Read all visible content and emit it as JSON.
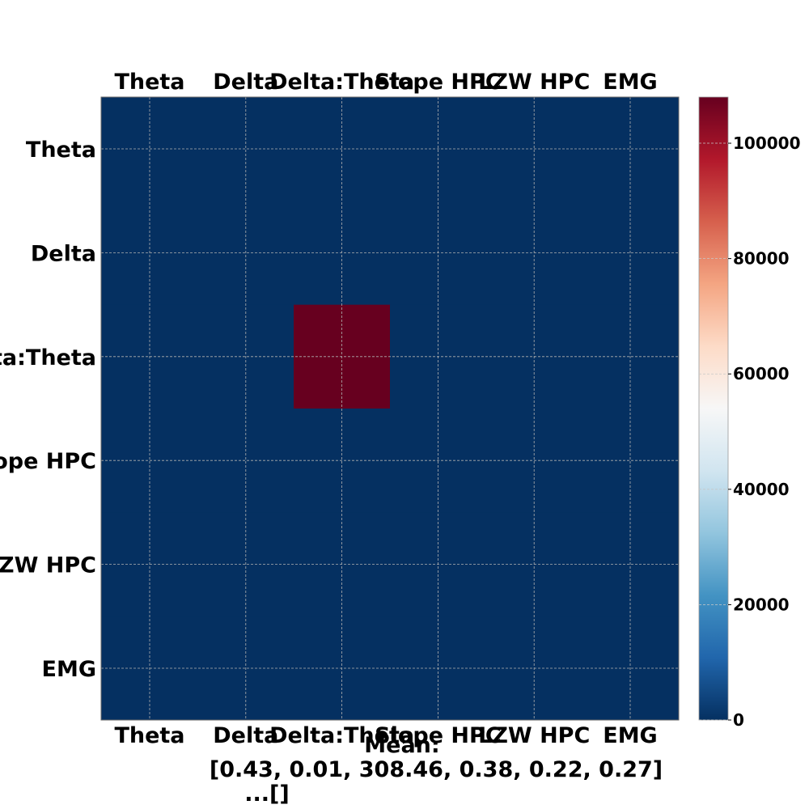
{
  "chart_data": {
    "type": "heatmap",
    "title": "",
    "row_labels": [
      "Theta",
      "Delta",
      "Delta:Theta",
      "Slope HPC",
      "LZW HPC",
      "EMG"
    ],
    "col_labels": [
      "Theta",
      "Delta",
      "Delta:Theta",
      "Slope HPC",
      "LZW HPC",
      "EMG"
    ],
    "values": [
      [
        0,
        0,
        0,
        0,
        0,
        0
      ],
      [
        0,
        0,
        0,
        0,
        0,
        0
      ],
      [
        0,
        0,
        108000,
        0,
        0,
        0
      ],
      [
        0,
        0,
        0,
        0,
        0,
        0
      ],
      [
        0,
        0,
        0,
        0,
        0,
        0
      ],
      [
        0,
        0,
        0,
        0,
        0,
        0
      ]
    ],
    "colormap": "RdBu_r",
    "colorbar": {
      "min": 0,
      "max": 108000,
      "ticks": [
        0,
        20000,
        40000,
        60000,
        80000,
        100000
      ],
      "tick_labels": [
        "0",
        "20000",
        "40000",
        "60000",
        "80000",
        "100000"
      ]
    },
    "grid": true,
    "x_tick_labels_top": true,
    "x_tick_labels_bottom": true,
    "footer": {
      "line1": "Mean:",
      "line2": "[0.43, 0.01, 308.46, 0.38, 0.22, 0.27]",
      "line3": "...[]"
    }
  }
}
